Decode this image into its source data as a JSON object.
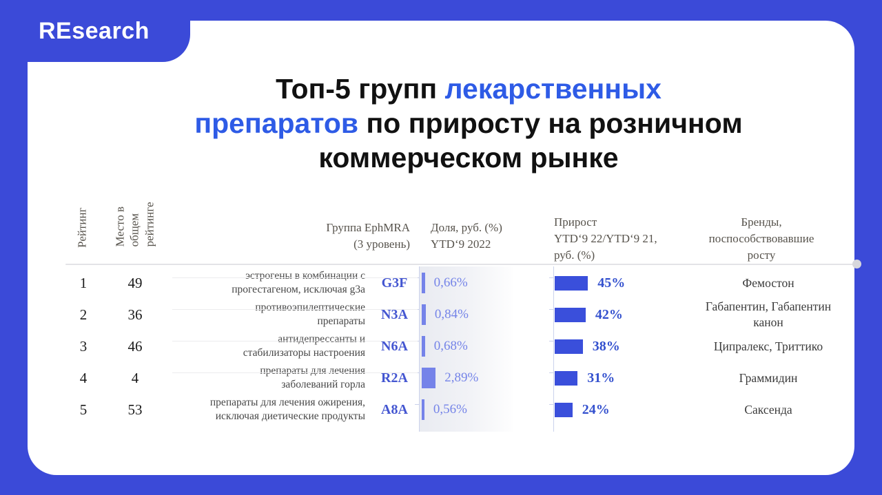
{
  "colors": {
    "brand_blue": "#3B4AD8",
    "title_blue": "#2E5BE6",
    "bar_blue": "#3A4FDB",
    "share_blue": "#7583E9",
    "code_blue": "#4456D1",
    "growth_label_blue": "#3350CE",
    "header_gray": "#56524B"
  },
  "logo": {
    "text": "REsearch"
  },
  "title": {
    "seg1": "Топ-5 групп ",
    "seg2_blue": "лекарственных\nпрепаратов",
    "seg3": " по приросту на розничном\nкоммерческом рынке"
  },
  "table": {
    "headers": {
      "rank": "Рейтинг",
      "place": "Место в\nобщем\nрейтинге",
      "group": "Группа EphMRA\n(3 уровень)",
      "share": "Доля, руб. (%)\nYTD‘9 2022",
      "growth": "Прирост\nYTD‘9 22/YTD‘9 21,\nруб. (%)",
      "brands": "Бренды,\nпоспособствовавшие\nросту"
    },
    "rows": [
      {
        "rank": "1",
        "place": "49",
        "group": "эстрогены в комбинации с\nпрогестагеном, исключая g3a",
        "code": "G3F",
        "share": "0,66%",
        "share_value": 0.66,
        "growth": "45%",
        "growth_value": 45,
        "brands": "Фемостон"
      },
      {
        "rank": "2",
        "place": "36",
        "group": "противоэпилептические\nпрепараты",
        "code": "N3A",
        "share": "0,84%",
        "share_value": 0.84,
        "growth": "42%",
        "growth_value": 42,
        "brands": "Габапентин, Габапентин\nканон"
      },
      {
        "rank": "3",
        "place": "46",
        "group": "антидепрессанты и\nстабилизаторы настроения",
        "code": "N6A",
        "share": "0,68%",
        "share_value": 0.68,
        "growth": "38%",
        "growth_value": 38,
        "brands": "Ципралекс, Триттико"
      },
      {
        "rank": "4",
        "place": "4",
        "group": "препараты для лечения\nзаболеваний горла",
        "code": "R2A",
        "share": "2,89%",
        "share_value": 2.89,
        "growth": "31%",
        "growth_value": 31,
        "brands": "Граммидин"
      },
      {
        "rank": "5",
        "place": "53",
        "group": "препараты для лечения ожирения,\nисключая диетические продукты",
        "code": "A8A",
        "share": "0,56%",
        "share_value": 0.56,
        "growth": "24%",
        "growth_value": 24,
        "brands": "Саксенда"
      }
    ]
  },
  "chart_data": {
    "type": "bar",
    "orientation": "horizontal",
    "title": "Топ-5 групп лекарственных препаратов по приросту на розничном коммерческом рынке",
    "categories": [
      "G3F",
      "N3A",
      "N6A",
      "R2A",
      "A8A"
    ],
    "category_names": [
      "эстрогены в комбинации с прогестагеном, исключая g3a",
      "противоэпилептические препараты",
      "антидепрессанты и стабилизаторы настроения",
      "препараты для лечения заболеваний горла",
      "препараты для лечения ожирения, исключая диетические продукты"
    ],
    "series": [
      {
        "name": "Доля, руб. (%) YTD‘9 2022",
        "values": [
          0.66,
          0.84,
          0.68,
          2.89,
          0.56
        ]
      },
      {
        "name": "Прирост YTD‘9 22/YTD‘9 21, руб. (%)",
        "values": [
          45,
          42,
          38,
          31,
          24
        ]
      }
    ],
    "extra_columns": {
      "Место в общем рейтинге": [
        49,
        36,
        46,
        4,
        53
      ],
      "Бренды, поспособствовавшие росту": [
        "Фемостон",
        "Габапентин, Габапентин канон",
        "Ципралекс, Триттико",
        "Граммидин",
        "Саксенда"
      ]
    },
    "legend_position": "none",
    "grid": false
  }
}
